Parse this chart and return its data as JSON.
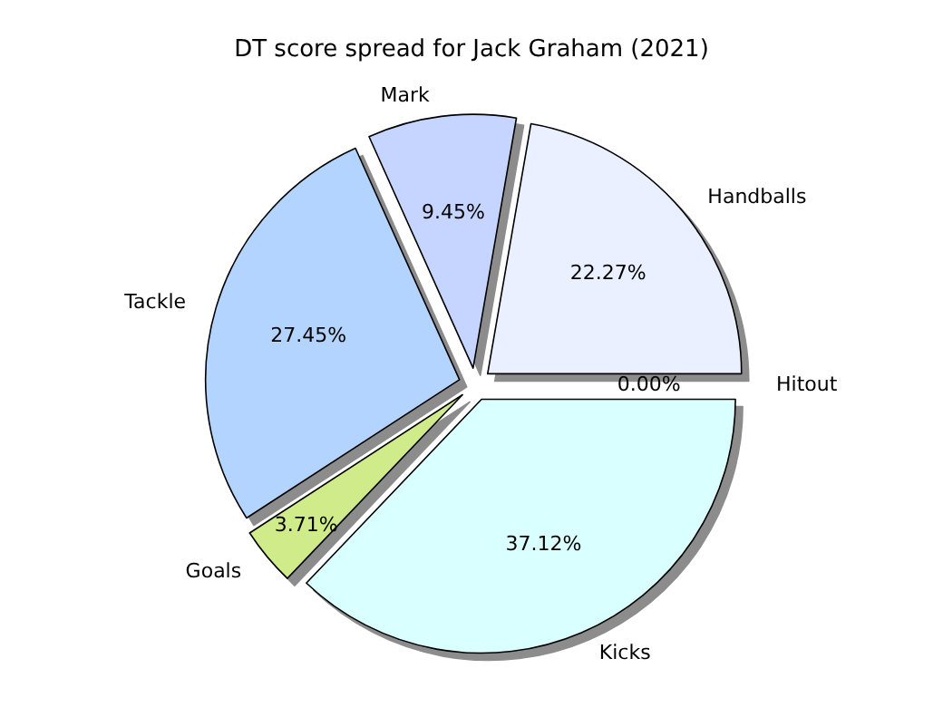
{
  "chart_data": {
    "type": "pie",
    "title": "DT score spread for Jack Graham (2021)",
    "categories": [
      "Hitout",
      "Handballs",
      "Mark",
      "Tackle",
      "Goals",
      "Kicks"
    ],
    "values": [
      0,
      22.27,
      9.45,
      27.45,
      3.71,
      37.12
    ],
    "value_labels": [
      "0.00%",
      "22.27%",
      "9.45%",
      "27.45%",
      "3.71%",
      "37.12%"
    ],
    "colors": [
      "#ffffff",
      "#eaf0ff",
      "#c5d5ff",
      "#b3d4ff",
      "#d0eb8a",
      "#d9ffff"
    ],
    "legend": false
  }
}
